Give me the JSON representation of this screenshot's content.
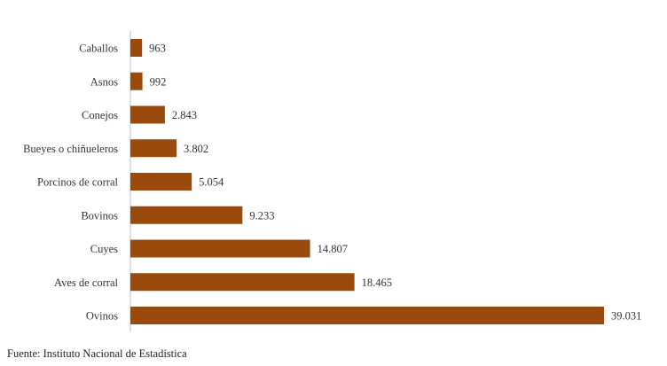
{
  "source_note": "Fuente: Instituto Nacional de Estadística",
  "colors": {
    "bar": "#9A4A0C",
    "axis": "#BFBFBF",
    "text": "#333333"
  },
  "chart_data": {
    "type": "bar",
    "orientation": "horizontal",
    "categories": [
      "Caballos",
      "Asnos",
      "Conejos",
      "Bueyes o chiñueleros",
      "Porcinos  de  corral",
      "Bovinos",
      "Cuyes",
      "Aves de  corral",
      "Ovinos"
    ],
    "values": [
      963,
      992,
      2843,
      3802,
      5054,
      9233,
      14807,
      18465,
      39031
    ],
    "value_labels": [
      "963",
      "992",
      "2.843",
      "3.802",
      "5.054",
      "9.233",
      "14.807",
      "18.465",
      "39.031"
    ],
    "title": "",
    "xlabel": "",
    "ylabel": "",
    "xlim": [
      0,
      39031
    ],
    "grid": false,
    "legend": "none"
  }
}
